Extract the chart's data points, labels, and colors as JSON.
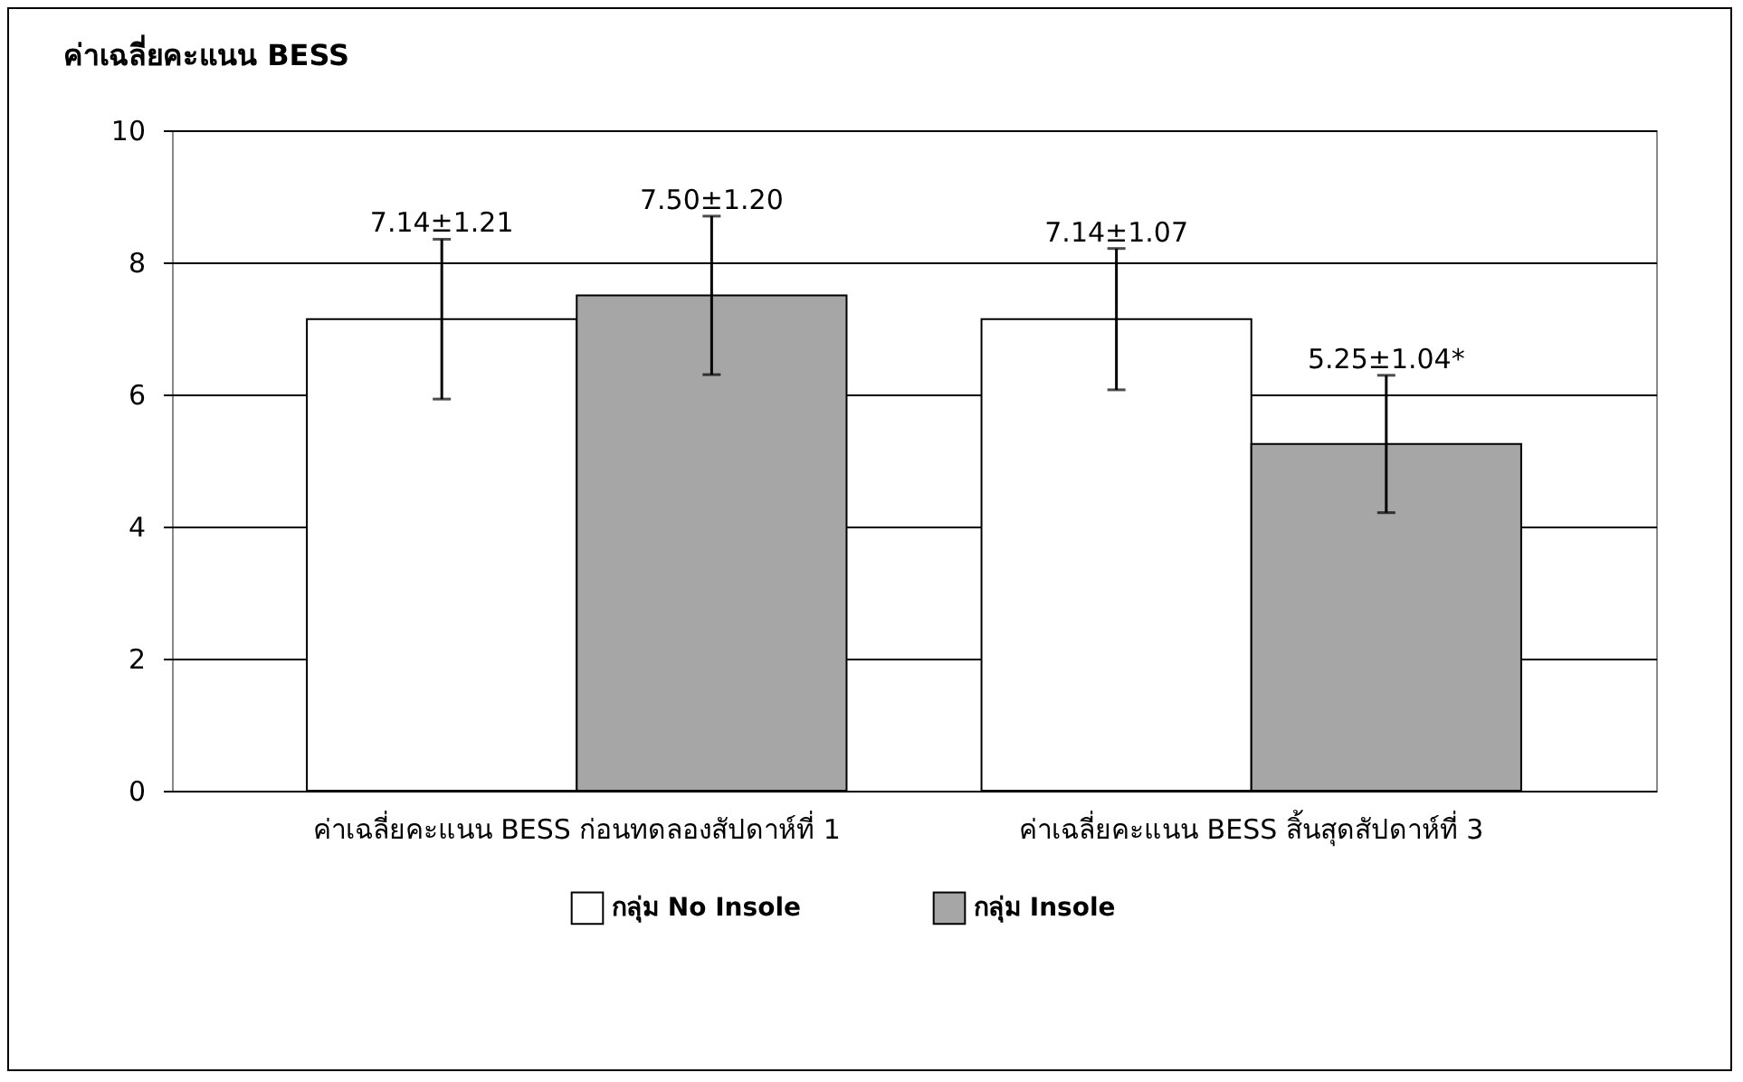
{
  "chart_data": {
    "type": "bar",
    "title": "ค่าเฉลี่ยคะแนน BESS",
    "categories": [
      "ค่าเฉลี่ยคะแนน BESS ก่อนทดลองสัปดาห์ที่ 1",
      "ค่าเฉลี่ยคะแนน BESS สิ้นสุดสัปดาห์ที่ 3"
    ],
    "series": [
      {
        "name": "กลุ่ม No Insole",
        "color": "#ffffff",
        "values": [
          7.14,
          7.14
        ],
        "errors": [
          1.21,
          1.07
        ],
        "value_labels": [
          "7.14±1.21",
          "7.14±1.07"
        ]
      },
      {
        "name": "กลุ่ม Insole",
        "color": "#a6a6a6",
        "values": [
          7.5,
          5.25
        ],
        "errors": [
          1.2,
          1.04
        ],
        "value_labels": [
          "7.50±1.20",
          "5.25±1.04*"
        ]
      }
    ],
    "ylim": [
      0,
      10
    ],
    "yticks": [
      0,
      2,
      4,
      6,
      8,
      10
    ],
    "grid": "y",
    "legend": "bottom"
  }
}
